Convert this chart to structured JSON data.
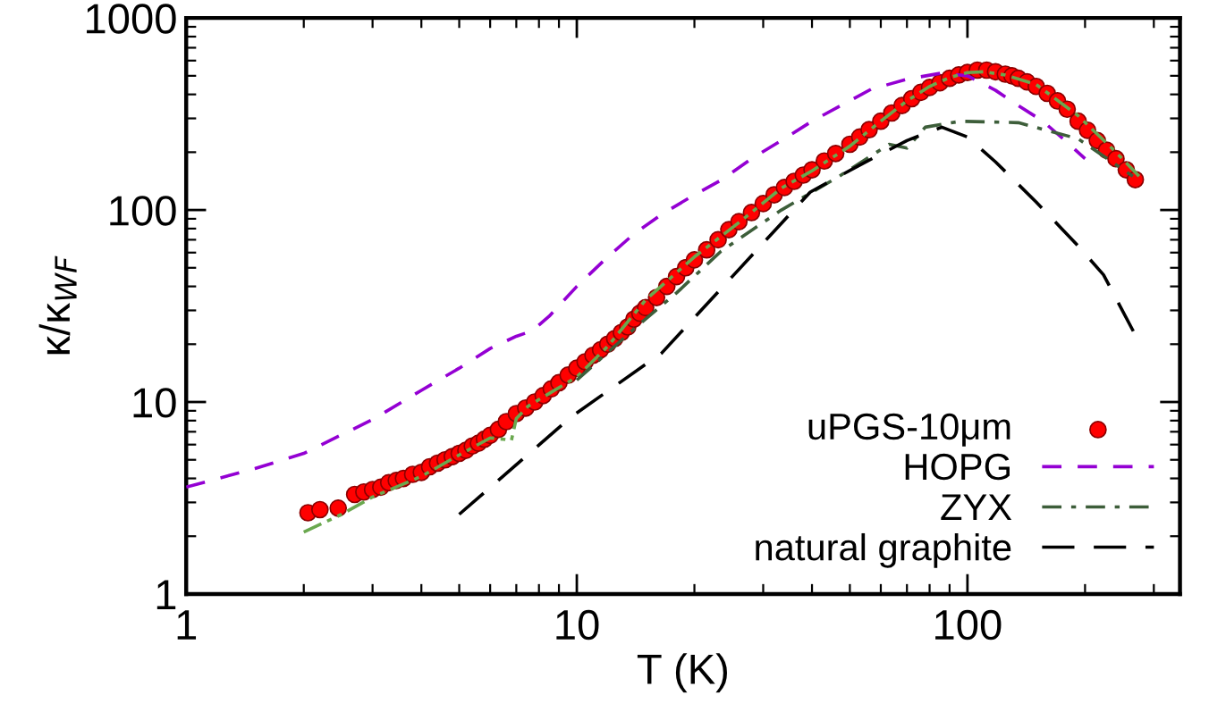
{
  "chart_data": {
    "type": "line",
    "xlabel": "T (K)",
    "ylabel": "κ/κ$_{WF}$",
    "log": "xy",
    "xlim": [
      1,
      350
    ],
    "ylim": [
      1,
      1000
    ],
    "xticks": [
      1,
      10,
      100
    ],
    "yticks": [
      1,
      10,
      100,
      1000
    ],
    "grid": false,
    "legend": "bottom right",
    "series": [
      {
        "name": "uPGS-10μm",
        "type": "scatter",
        "marker": "circle",
        "color": "#ff0000",
        "x": [
          2.05,
          2.2,
          2.45,
          2.7,
          2.85,
          3.0,
          3.15,
          3.3,
          3.45,
          3.6,
          3.8,
          4.0,
          4.2,
          4.4,
          4.6,
          4.8,
          5.0,
          5.2,
          5.4,
          5.6,
          5.8,
          6.0,
          6.3,
          6.6,
          7.0,
          7.4,
          7.8,
          8.2,
          8.6,
          9.0,
          9.5,
          10,
          10.5,
          11,
          11.5,
          12,
          12.5,
          13,
          13.5,
          14,
          14.5,
          15,
          16,
          17,
          18,
          19,
          20,
          21.5,
          23,
          24.5,
          26,
          28,
          30,
          32,
          34,
          36,
          38,
          40,
          43,
          46,
          50,
          53,
          56,
          60,
          64,
          68,
          72,
          76,
          80,
          85,
          90,
          95,
          100,
          106,
          112,
          118,
          125,
          130,
          135,
          142,
          150,
          160,
          170,
          180,
          192,
          203,
          215,
          227,
          240,
          255,
          269
        ],
        "values": [
          2.65,
          2.75,
          2.8,
          3.3,
          3.4,
          3.5,
          3.6,
          3.8,
          3.9,
          4.0,
          4.2,
          4.3,
          4.6,
          4.8,
          5.0,
          5.2,
          5.4,
          5.6,
          5.9,
          6.1,
          6.4,
          6.7,
          7.2,
          7.9,
          8.7,
          9.3,
          10.0,
          10.8,
          11.7,
          12.6,
          13.8,
          15.0,
          16.2,
          17.5,
          18.7,
          20,
          21.4,
          23,
          24.6,
          27,
          29,
          31,
          35,
          40,
          45,
          50,
          55,
          62,
          70,
          79,
          87,
          97,
          108,
          120,
          131,
          141,
          152,
          162,
          180,
          197,
          220,
          240,
          262,
          290,
          320,
          350,
          380,
          410,
          435,
          460,
          485,
          505,
          520,
          535,
          535,
          525,
          510,
          500,
          485,
          465,
          440,
          405,
          370,
          335,
          290,
          260,
          230,
          205,
          185,
          162,
          144
        ]
      },
      {
        "name": "HOPG",
        "line_style": "dashed",
        "color": "#9400d3",
        "x": [
          1,
          1.5,
          2,
          3,
          4,
          5,
          6,
          7,
          7.7,
          8.5,
          10,
          12,
          14,
          16.5,
          20,
          23.4,
          28,
          33.4,
          40,
          56.6,
          70,
          86,
          100,
          118,
          135,
          156,
          180,
          200
        ],
        "values": [
          3.6,
          4.5,
          5.4,
          8.1,
          11.5,
          15,
          19,
          22,
          23.5,
          28,
          40,
          57,
          75,
          95,
          120,
          143,
          185,
          230,
          290,
          425,
          480,
          517,
          500,
          420,
          350,
          290,
          225,
          185
        ]
      },
      {
        "line_style": "dashdotdot",
        "color": "#6aa84f",
        "x": [
          2,
          2.5,
          3,
          4,
          5,
          6,
          6.5,
          6.8,
          7.0,
          7.5,
          8,
          10,
          12,
          15,
          20,
          26,
          33.4,
          40,
          50,
          60,
          70,
          80,
          90,
          100,
          110,
          125,
          150,
          192,
          240,
          275
        ],
        "values": [
          2.1,
          2.6,
          3.2,
          4.1,
          5.3,
          6.5,
          6.4,
          6.3,
          8.2,
          9.5,
          10.3,
          13.5,
          19.5,
          34,
          57,
          86,
          130,
          160,
          215,
          290,
          370,
          440,
          490,
          520,
          525,
          505,
          450,
          310,
          200,
          150
        ]
      },
      {
        "name": "ZYX",
        "line_style": "dashdot",
        "color": "#3d5e3a",
        "x": [
          10,
          14,
          18,
          23.4,
          33.4,
          47,
          63,
          70,
          78,
          96,
          135,
          192,
          265
        ],
        "values": [
          13,
          24,
          37,
          61,
          100,
          150,
          220,
          210,
          270,
          290,
          285,
          235,
          150
        ]
      },
      {
        "name": "natural graphite",
        "line_style": "longdash",
        "color": "#000000",
        "x": [
          5,
          9.7,
          16.5,
          25,
          39.6,
          52.6,
          70,
          86,
          100,
          118,
          150,
          192,
          223,
          270
        ],
        "values": [
          2.6,
          8.4,
          18,
          45,
          124,
          170,
          230,
          270,
          240,
          178,
          110,
          65,
          46,
          22
        ]
      }
    ]
  }
}
